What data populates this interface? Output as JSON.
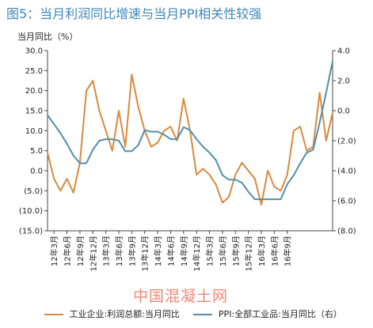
{
  "title": "图5：当月利润同比增速与当月PPI相关性较强",
  "watermark": "中国混凝土网",
  "chart_data": {
    "type": "line",
    "ylabel": "当月同比（%）",
    "y_left": {
      "min": -15,
      "max": 30,
      "ticks": [
        30,
        25,
        20,
        15,
        10,
        5,
        0,
        -5,
        -10,
        -15
      ],
      "tick_labels": [
        "30.0",
        "25.0",
        "20.0",
        "15.0",
        "10.0",
        "5.0",
        "0.0",
        "(5.0)",
        "(10.0)",
        "(15.0)"
      ]
    },
    "y_right": {
      "min": -8,
      "max": 4,
      "ticks": [
        4,
        2,
        0,
        -2,
        -4,
        -6,
        -8
      ],
      "tick_labels": [
        "4.0",
        "2.0",
        "0.0",
        "(2.0)",
        "(4.0)",
        "(6.0)",
        "(8.0)"
      ]
    },
    "x_labels": [
      "12年3月",
      "12年6月",
      "12年9月",
      "12年12月",
      "13年3月",
      "13年6月",
      "13年9月",
      "13年12月",
      "14年3月",
      "14年6月",
      "14年9月",
      "14年12月",
      "15年3月",
      "15年6月",
      "15年9月",
      "15年12月",
      "16年3月",
      "16年6月",
      "16年9月"
    ],
    "series": [
      {
        "name": "工业企业:利润总额:当月同比",
        "axis": "left",
        "color": "#d98a3d",
        "values": [
          4.5,
          -2.0,
          -5.0,
          -2.0,
          -5.5,
          2.0,
          20.0,
          22.5,
          15.0,
          10.0,
          5.0,
          15.0,
          6.0,
          24.0,
          16.0,
          10.0,
          6.0,
          7.0,
          10.0,
          11.0,
          7.5,
          18.0,
          10.0,
          -1.0,
          0.5,
          -1.0,
          -3.5,
          -8.0,
          -6.5,
          -1.0,
          2.0,
          0.0,
          -2.0,
          -8.5,
          0.0,
          -4.0,
          -5.0,
          -1.0,
          10.0,
          11.0,
          5.0,
          6.0,
          19.5,
          7.5,
          14.5
        ]
      },
      {
        "name": "PPI:全部工业品:当月同比（右）",
        "axis": "right",
        "color": "#4f8fa8",
        "values": [
          -0.3,
          -0.9,
          -1.5,
          -2.2,
          -3.0,
          -3.5,
          -3.5,
          -2.6,
          -2.0,
          -1.9,
          -1.9,
          -2.0,
          -2.7,
          -2.7,
          -2.3,
          -1.3,
          -1.4,
          -1.4,
          -1.6,
          -1.9,
          -1.9,
          -1.1,
          -1.3,
          -1.9,
          -2.4,
          -2.8,
          -3.3,
          -4.3,
          -4.6,
          -4.6,
          -4.8,
          -5.4,
          -5.9,
          -5.9,
          -5.9,
          -5.9,
          -5.9,
          -4.9,
          -4.3,
          -3.5,
          -2.8,
          -2.6,
          -0.8,
          1.2,
          3.3
        ]
      }
    ],
    "legend": "bottom"
  }
}
